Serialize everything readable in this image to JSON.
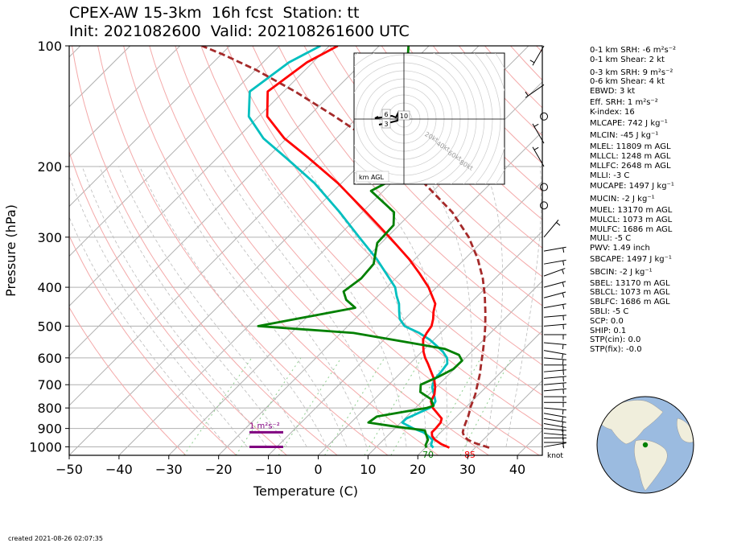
{
  "title": {
    "line1": "CPEX-AW 15-3km  16h fcst  Station: tt",
    "line2": "Init: 2021082600  Valid: 202108261600 UTC"
  },
  "created": "created 2021-08-26 02:07:35",
  "params": [
    {
      "text": "0-1 km SRH: -6 m²s⁻²",
      "gap": 0
    },
    {
      "text": "0-1 km Shear: 2 kt",
      "gap": 0
    },
    {
      "text": "0-3 km SRH: 9 m²s⁻²",
      "gap": 4
    },
    {
      "text": "0-6 km Shear: 4 kt",
      "gap": 0
    },
    {
      "text": "EBWD: 3 kt",
      "gap": 0
    },
    {
      "text": "Eff. SRH: 1 m²s⁻²",
      "gap": 2
    },
    {
      "text": "K-index: 16",
      "gap": 0
    },
    {
      "text": "MLCAPE: 742 J kg⁻¹",
      "gap": 2
    },
    {
      "text": "MLCIN: -45 J kg⁻¹",
      "gap": 4
    },
    {
      "text": "MLEL: 11809 m AGL",
      "gap": 2
    },
    {
      "text": "MLLCL: 1248 m AGL",
      "gap": 0
    },
    {
      "text": "MLLFC: 2648 m AGL",
      "gap": 0
    },
    {
      "text": "MLLI: -3 C",
      "gap": 0
    },
    {
      "text": "MUCAPE: 1497 J kg⁻¹",
      "gap": 2
    },
    {
      "text": "MUCIN: -2 J kg⁻¹",
      "gap": 4
    },
    {
      "text": "MUEL: 13170 m AGL",
      "gap": 2
    },
    {
      "text": "MULCL: 1073 m AGL",
      "gap": 0
    },
    {
      "text": "MULFC: 1686 m AGL",
      "gap": 0
    },
    {
      "text": "MULI: -5 C",
      "gap": 0
    },
    {
      "text": "PWV: 1.49 inch",
      "gap": 0
    },
    {
      "text": "SBCAPE: 1497 J kg⁻¹",
      "gap": 2
    },
    {
      "text": "SBCIN: -2 J kg⁻¹",
      "gap": 4
    },
    {
      "text": "SBEL: 13170 m AGL",
      "gap": 2
    },
    {
      "text": "SBLCL: 1073 m AGL",
      "gap": 0
    },
    {
      "text": "SBLFC: 1686 m AGL",
      "gap": 0
    },
    {
      "text": "SBLI: -5 C",
      "gap": 0
    },
    {
      "text": "SCP: 0.0",
      "gap": 0
    },
    {
      "text": "SHIP: 0.1",
      "gap": 0
    },
    {
      "text": "STP(cin): 0.0",
      "gap": 0
    },
    {
      "text": "STP(fix): -0.0",
      "gap": 0
    }
  ],
  "colors": {
    "temperature": "#ff0000",
    "dewpoint": "#008000",
    "wetbulb": "#00bfbf",
    "parcel": "#a52a2a",
    "dry_adiabat": "#f4a9a9",
    "moist_adiabat": "#bbbbbb",
    "mixing_ratio": "#8fcf8f",
    "isotherm": "#b0b0b0",
    "srh_marker": "#800080",
    "ocean": "#9bbbe0",
    "land": "#f0eedc"
  },
  "chart_data": {
    "type": "skew-t",
    "xlabel": "Temperature (C)",
    "ylabel": "Pressure (hPa)",
    "xlim": [
      -50,
      45
    ],
    "ylim": [
      1050,
      100
    ],
    "y_scale": "log",
    "xticks": [
      -50,
      -40,
      -30,
      -20,
      -10,
      0,
      10,
      20,
      30,
      40
    ],
    "yticks": [
      100,
      200,
      300,
      400,
      500,
      600,
      700,
      800,
      900,
      1000
    ],
    "grid": true,
    "surface_labels": {
      "dewpoint": "70",
      "temperature": "85"
    },
    "wind_unit_label": "knot",
    "srh_label": "1 m²s⁻²",
    "temperature": {
      "p": [
        1005,
        985,
        960,
        940,
        920,
        900,
        870,
        850,
        820,
        800,
        770,
        740,
        710,
        680,
        650,
        620,
        600,
        580,
        560,
        540,
        520,
        500,
        480,
        460,
        440,
        420,
        400,
        370,
        340,
        300,
        260,
        220,
        190,
        170,
        150,
        130,
        110,
        100
      ],
      "t": [
        24.8,
        22.5,
        20.3,
        19.0,
        18.2,
        18.2,
        18.0,
        17.4,
        15.1,
        13.5,
        11.8,
        11.1,
        9.8,
        8.1,
        5.9,
        3.6,
        1.9,
        0.4,
        -0.9,
        -2.2,
        -2.8,
        -3.2,
        -4.3,
        -5.7,
        -6.9,
        -9.2,
        -11.6,
        -16.1,
        -21.2,
        -29.5,
        -39.2,
        -50.7,
        -61.8,
        -70.5,
        -78.3,
        -83.2,
        -81.2,
        -78.3
      ]
    },
    "dewpoint": {
      "p": [
        1005,
        990,
        960,
        930,
        910,
        890,
        870,
        840,
        820,
        800,
        790,
        760,
        730,
        700,
        670,
        640,
        610,
        590,
        570,
        550,
        520,
        500,
        450,
        430,
        410,
        380,
        350,
        310,
        280,
        260,
        230,
        210,
        190,
        170,
        150,
        125,
        110,
        100
      ],
      "t": [
        20.2,
        19.5,
        18.9,
        17.4,
        16.4,
        9.6,
        3.5,
        4.0,
        8.0,
        12.3,
        13.2,
        11.3,
        7.8,
        6.4,
        8.3,
        9.8,
        9.9,
        8.1,
        4.1,
        -4.2,
        -17.5,
        -38.0,
        -22.2,
        -25.6,
        -27.8,
        -26.9,
        -27.3,
        -30.8,
        -31.1,
        -33.6,
        -42.5,
        -39.6,
        -48.2,
        -48.3,
        -49.9,
        -57.0,
        -61.0,
        -64.1
      ]
    },
    "wetbulb": {
      "p": [
        1005,
        990,
        960,
        940,
        920,
        900,
        870,
        850,
        820,
        800,
        790,
        770,
        740,
        710,
        680,
        650,
        620,
        600,
        580,
        560,
        540,
        520,
        500,
        480,
        460,
        440,
        420,
        400,
        370,
        340,
        300,
        260,
        220,
        190,
        170,
        150,
        130,
        110,
        100
      ],
      "t": [
        21.6,
        20.6,
        19.8,
        18.2,
        16.5,
        13.7,
        10.3,
        10.3,
        11.8,
        12.9,
        13.1,
        12.7,
        11.0,
        9.2,
        8.1,
        7.9,
        7.5,
        6.3,
        4.3,
        1.8,
        -0.9,
        -4.3,
        -8.6,
        -11.0,
        -12.6,
        -14.2,
        -16.3,
        -18.3,
        -22.8,
        -27.7,
        -35.6,
        -44.5,
        -55.4,
        -66.3,
        -74.7,
        -82.0,
        -86.8,
        -84.8,
        -81.8
      ]
    },
    "parcel": {
      "p": [
        1005,
        980,
        960,
        940,
        920,
        900,
        880,
        860,
        840,
        820,
        800,
        770,
        740,
        700,
        660,
        620,
        580,
        540,
        500,
        460,
        420,
        380,
        340,
        300,
        260,
        220,
        190,
        170,
        150,
        130,
        115,
        105,
        100
      ],
      "t": [
        32.8,
        29.2,
        26.9,
        25.4,
        24.4,
        23.8,
        23.3,
        22.8,
        22.3,
        21.7,
        21.0,
        20.2,
        19.3,
        17.8,
        16.2,
        14.3,
        12.3,
        10.1,
        7.6,
        4.7,
        1.4,
        -2.5,
        -7.4,
        -13.6,
        -21.9,
        -33.4,
        -44.6,
        -53.8,
        -64.7,
        -77.7,
        -89.7,
        -99.7,
        -105.6
      ]
    },
    "wind_barbs": [
      {
        "p": 1000,
        "speed_kt": 4,
        "dir_deg": 80
      },
      {
        "p": 975,
        "speed_kt": 5,
        "dir_deg": 90
      },
      {
        "p": 950,
        "speed_kt": 6,
        "dir_deg": 90
      },
      {
        "p": 925,
        "speed_kt": 7,
        "dir_deg": 95
      },
      {
        "p": 900,
        "speed_kt": 7,
        "dir_deg": 95
      },
      {
        "p": 875,
        "speed_kt": 6,
        "dir_deg": 100
      },
      {
        "p": 850,
        "speed_kt": 6,
        "dir_deg": 100
      },
      {
        "p": 825,
        "speed_kt": 5,
        "dir_deg": 100
      },
      {
        "p": 800,
        "speed_kt": 5,
        "dir_deg": 95
      },
      {
        "p": 775,
        "speed_kt": 5,
        "dir_deg": 90
      },
      {
        "p": 750,
        "speed_kt": 5,
        "dir_deg": 90
      },
      {
        "p": 725,
        "speed_kt": 5,
        "dir_deg": 85
      },
      {
        "p": 700,
        "speed_kt": 5,
        "dir_deg": 85
      },
      {
        "p": 675,
        "speed_kt": 4,
        "dir_deg": 85
      },
      {
        "p": 650,
        "speed_kt": 4,
        "dir_deg": 85
      },
      {
        "p": 625,
        "speed_kt": 4,
        "dir_deg": 90
      },
      {
        "p": 600,
        "speed_kt": 5,
        "dir_deg": 95
      },
      {
        "p": 575,
        "speed_kt": 5,
        "dir_deg": 100
      },
      {
        "p": 550,
        "speed_kt": 5,
        "dir_deg": 95
      },
      {
        "p": 525,
        "speed_kt": 5,
        "dir_deg": 90
      },
      {
        "p": 500,
        "speed_kt": 5,
        "dir_deg": 85
      },
      {
        "p": 475,
        "speed_kt": 5,
        "dir_deg": 85
      },
      {
        "p": 450,
        "speed_kt": 5,
        "dir_deg": 80
      },
      {
        "p": 425,
        "speed_kt": 5,
        "dir_deg": 75
      },
      {
        "p": 400,
        "speed_kt": 6,
        "dir_deg": 75
      },
      {
        "p": 375,
        "speed_kt": 6,
        "dir_deg": 70
      },
      {
        "p": 350,
        "speed_kt": 5,
        "dir_deg": 80
      },
      {
        "p": 325,
        "speed_kt": 4,
        "dir_deg": 80
      },
      {
        "p": 300,
        "speed_kt": 3,
        "dir_deg": 40
      },
      {
        "p": 250,
        "speed_kt": 0,
        "dir_deg": 0
      },
      {
        "p": 225,
        "speed_kt": 0,
        "dir_deg": 0
      },
      {
        "p": 200,
        "speed_kt": 3,
        "dir_deg": 330
      },
      {
        "p": 175,
        "speed_kt": 3,
        "dir_deg": 330
      },
      {
        "p": 150,
        "speed_kt": 0,
        "dir_deg": 0
      },
      {
        "p": 125,
        "speed_kt": 6,
        "dir_deg": 235
      },
      {
        "p": 100,
        "speed_kt": 6,
        "dir_deg": 210
      }
    ],
    "hodograph": {
      "ring_labels": [
        "20kt",
        "40kt",
        "60kt",
        "80kt"
      ],
      "height_label": "km AGL",
      "marker_labels": [
        "6",
        "10",
        "3"
      ]
    },
    "inset_map": {
      "marker": "station location",
      "projection": "orthographic"
    }
  }
}
